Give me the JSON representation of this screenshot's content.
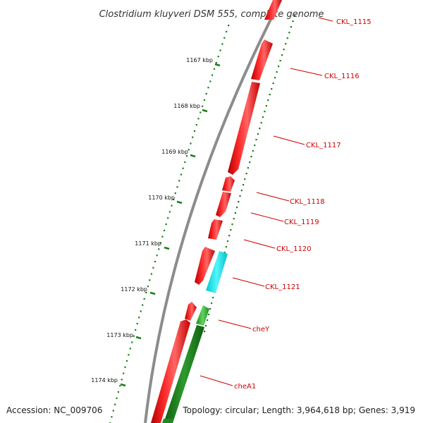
{
  "title": "Clostridium kluyveri DSM 555, complete genome",
  "accession": "Accession: NC_009706",
  "summary": "Topology: circular; Length: 3,964,618 bp; Genes: 3,919",
  "colors": {
    "backbone": "#8c8c8c",
    "gene_forward": "#ff1a1a",
    "gene_reverse_plain": "#22e6ee",
    "gene_reverse_named": "#33bb33",
    "tick": "#1b7d1b",
    "label": "#cc0000"
  },
  "ticks": [
    {
      "label": "1167 kbp"
    },
    {
      "label": "1168 kbp"
    },
    {
      "label": "1169 kbp"
    },
    {
      "label": "1170 kbp"
    },
    {
      "label": "1171 kbp"
    },
    {
      "label": "1172 kbp"
    },
    {
      "label": "1173 kbp"
    },
    {
      "label": "1174 kbp"
    }
  ],
  "genes": [
    {
      "name": "CKL_1115",
      "strand": "forward"
    },
    {
      "name": "CKL_1116",
      "strand": "forward"
    },
    {
      "name": "CKL_1117",
      "strand": "forward"
    },
    {
      "name": "CKL_1118",
      "strand": "forward"
    },
    {
      "name": "CKL_1119",
      "strand": "forward"
    },
    {
      "name": "CKL_1120",
      "strand": "forward"
    },
    {
      "name": "CKL_1121",
      "strand": "reverse"
    },
    {
      "name": "cheY",
      "strand": "reverse"
    },
    {
      "name": "cheA1",
      "strand": "reverse"
    }
  ]
}
